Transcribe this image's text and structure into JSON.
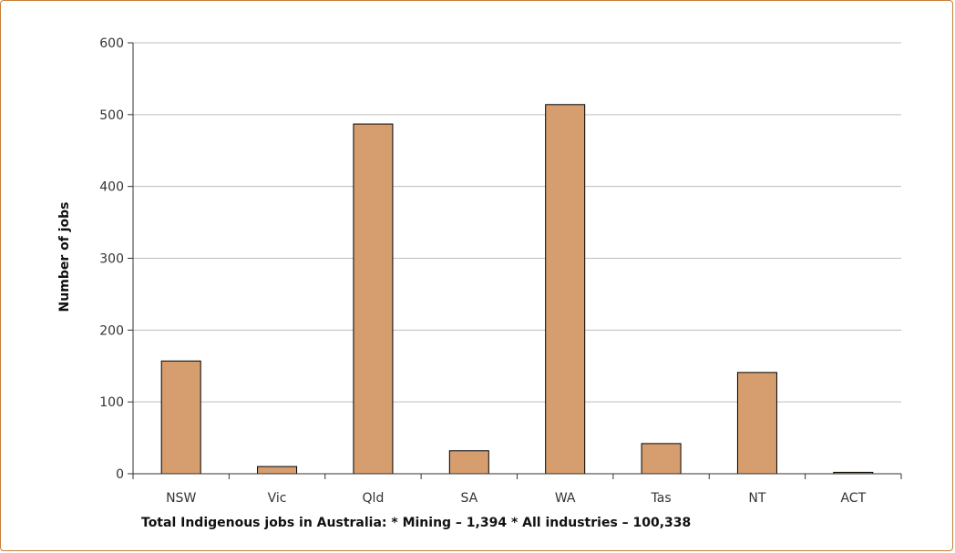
{
  "chart_data": {
    "type": "bar",
    "categories": [
      "NSW",
      "Vic",
      "Qld",
      "SA",
      "WA",
      "Tas",
      "NT",
      "ACT"
    ],
    "values": [
      157,
      10,
      487,
      32,
      514,
      42,
      141,
      2
    ],
    "title": "",
    "xlabel": "",
    "ylabel": "Number of jobs",
    "ylim": [
      0,
      600
    ],
    "yticks": [
      0,
      100,
      200,
      300,
      400,
      500,
      600
    ],
    "grid": true,
    "bar_color": "#d69e6e",
    "bar_outline": "#000000",
    "footnote": "Total Indigenous jobs in Australia:  * Mining – 1,394  * All industries – 100,338"
  }
}
